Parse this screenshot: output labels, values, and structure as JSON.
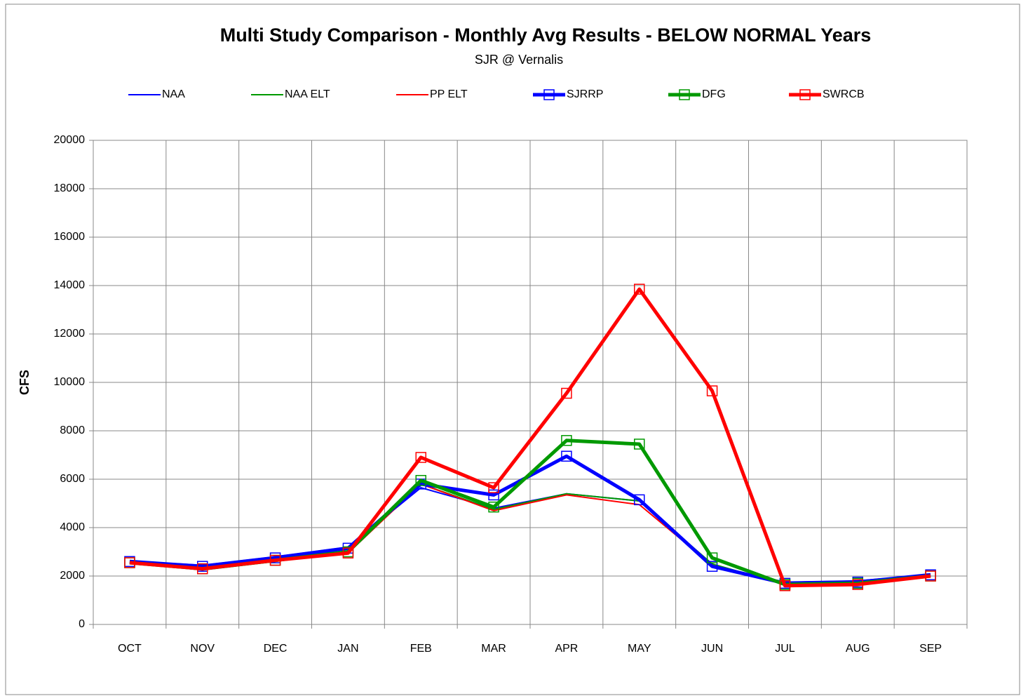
{
  "chart_data": {
    "type": "line",
    "title": "Multi Study Comparison - Monthly Avg Results -  BELOW NORMAL Years",
    "subtitle": "SJR @ Vernalis",
    "y_label": "CFS",
    "categories": [
      "OCT",
      "NOV",
      "DEC",
      "JAN",
      "FEB",
      "MAR",
      "APR",
      "MAY",
      "JUN",
      "JUL",
      "AUG",
      "SEP"
    ],
    "ylim": [
      0,
      20000
    ],
    "yticks": [
      0,
      2000,
      4000,
      6000,
      8000,
      10000,
      12000,
      14000,
      16000,
      18000,
      20000
    ],
    "grid": true,
    "legend": "top",
    "series": [
      {
        "name": "NAA",
        "color": "#0000ff",
        "width": 2,
        "marker": "none",
        "values": [
          2600,
          2450,
          2800,
          3200,
          5650,
          4800,
          5400,
          5100,
          2400,
          1750,
          1800,
          2050
        ]
      },
      {
        "name": "NAA ELT",
        "color": "#009900",
        "width": 2,
        "marker": "none",
        "values": [
          2550,
          2250,
          2600,
          3000,
          5800,
          4750,
          5400,
          5100,
          2500,
          1650,
          1700,
          2000
        ]
      },
      {
        "name": "PP ELT",
        "color": "#ff0000",
        "width": 2,
        "marker": "none",
        "values": [
          2550,
          2250,
          2650,
          2950,
          5800,
          4700,
          5350,
          4950,
          2450,
          1650,
          1650,
          2000
        ]
      },
      {
        "name": "SJRRP",
        "color": "#0000ff",
        "width": 5,
        "marker": "square",
        "values": [
          2600,
          2400,
          2750,
          3150,
          5800,
          5350,
          6950,
          5150,
          2400,
          1700,
          1750,
          2050
        ]
      },
      {
        "name": "DFG",
        "color": "#009900",
        "width": 5,
        "marker": "square",
        "values": [
          2550,
          2300,
          2650,
          3000,
          5950,
          4850,
          7600,
          7450,
          2750,
          1650,
          1700,
          2000
        ]
      },
      {
        "name": "SWRCB",
        "color": "#ff0000",
        "width": 5,
        "marker": "square",
        "values": [
          2550,
          2300,
          2650,
          2950,
          6900,
          5650,
          9550,
          13850,
          9650,
          1600,
          1650,
          2000
        ]
      }
    ]
  }
}
